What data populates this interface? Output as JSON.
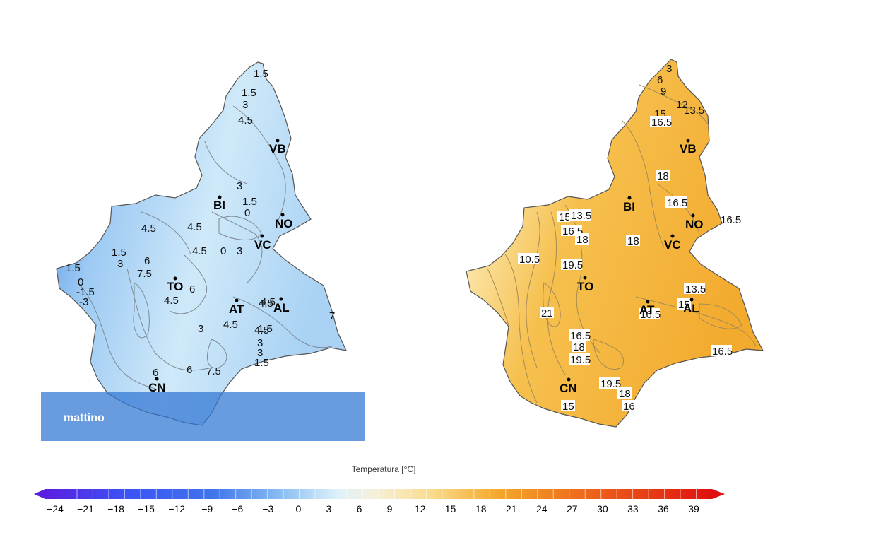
{
  "maps": [
    {
      "id": "morning",
      "panel_label": "mattino",
      "cities": [
        {
          "code": "VB"
        },
        {
          "code": "BI"
        },
        {
          "code": "NO"
        },
        {
          "code": "VC"
        },
        {
          "code": "TO"
        },
        {
          "code": "AT"
        },
        {
          "code": "AL"
        },
        {
          "code": "CN"
        }
      ],
      "isotherm_labels": [
        "1.5",
        "1.5",
        "3",
        "4.5",
        "3",
        "1.5",
        "0",
        "4.5",
        "4.5",
        "1.5",
        "3",
        "6",
        "7.5",
        "4.5",
        "0",
        "3",
        "6",
        "4.5",
        "0",
        "-1.5",
        "-3",
        "1.5",
        "4.5",
        "4.5",
        "3",
        "4.5",
        "1.5",
        "3",
        "3",
        "1.5",
        "6",
        "6",
        "7.5",
        "7",
        "4.5"
      ]
    },
    {
      "id": "afternoon",
      "cities": [
        {
          "code": "VB"
        },
        {
          "code": "BI"
        },
        {
          "code": "NO"
        },
        {
          "code": "VC"
        },
        {
          "code": "TO"
        },
        {
          "code": "AT"
        },
        {
          "code": "AL"
        },
        {
          "code": "CN"
        }
      ],
      "isotherm_labels": [
        "3",
        "6",
        "9",
        "12",
        "13.5",
        "15",
        "16.5",
        "18",
        "16.5",
        "15",
        "13.5",
        "16.5",
        "18",
        "18",
        "10.5",
        "19.5",
        "21",
        "16.5",
        "18",
        "19.5",
        "19.5",
        "18",
        "15",
        "16",
        "16.5",
        "13.5",
        "15",
        "16.5",
        "16.5"
      ]
    }
  ],
  "legend": {
    "title": "Temperatura [°C]",
    "ticks": [
      "−24",
      "−21",
      "−18",
      "−15",
      "−12",
      "−9",
      "−6",
      "−3",
      "0",
      "3",
      "6",
      "9",
      "12",
      "15",
      "18",
      "21",
      "24",
      "27",
      "30",
      "33",
      "36",
      "39"
    ],
    "color_stops": [
      "#5b1fe0",
      "#4a36f0",
      "#3c52f5",
      "#3366ee",
      "#4a86ea",
      "#6aa6ee",
      "#94c6f3",
      "#bce0f7",
      "#e2f3fa",
      "#f5f0d6",
      "#fbe6a6",
      "#f9d278",
      "#f6bb45",
      "#f3a326",
      "#f08a1f",
      "#ee6d1c",
      "#ec4e1b",
      "#e8301a",
      "#e01818"
    ]
  }
}
